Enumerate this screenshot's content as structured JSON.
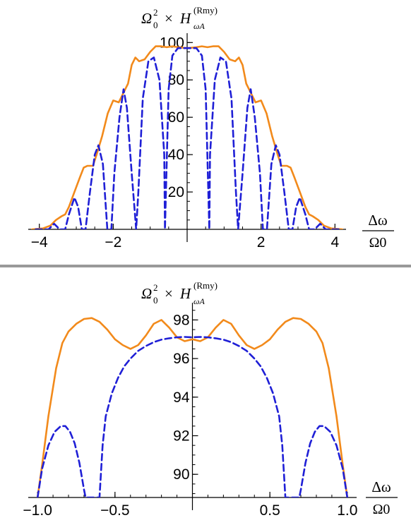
{
  "divider_color": "#999999",
  "chart_data": [
    {
      "type": "line",
      "title": "",
      "ylabel_parts": {
        "base": "Ω",
        "sub0": "0",
        "sup0": "2",
        "times": "×",
        "H": "H",
        "subH": "ωA",
        "supH": "(Rmy)"
      },
      "xlabel_parts": {
        "num": "Δω",
        "den": "Ω0"
      },
      "xlim": [
        -4.3,
        4.3
      ],
      "ylim": [
        0,
        102
      ],
      "x_ticks": [
        -4,
        -2,
        2,
        4
      ],
      "x_tick_labels": [
        "−4",
        "−2",
        "2",
        "4"
      ],
      "y_ticks": [
        20,
        40,
        60,
        80,
        100
      ],
      "y_tick_labels": [
        "20",
        "40",
        "60",
        "80",
        "100"
      ],
      "legend": "none",
      "grid": false,
      "series": [
        {
          "color": "#f28a1b",
          "style": "solid",
          "x": [
            -4.2,
            -3.9,
            -3.7,
            -3.55,
            -3.4,
            -3.3,
            -3.2,
            -3.05,
            -2.9,
            -2.8,
            -2.7,
            -2.55,
            -2.45,
            -2.3,
            -2.15,
            -2.0,
            -1.85,
            -1.75,
            -1.6,
            -1.5,
            -1.4,
            -1.3,
            -1.15,
            -1.0,
            -0.85,
            -0.7,
            -0.55,
            -0.4,
            -0.25,
            0,
            0.25,
            0.4,
            0.55,
            0.7,
            0.85,
            1.0,
            1.15,
            1.3,
            1.4,
            1.5,
            1.6,
            1.75,
            1.85,
            2.0,
            2.15,
            2.3,
            2.45,
            2.55,
            2.7,
            2.8,
            2.9,
            3.05,
            3.2,
            3.3,
            3.4,
            3.55,
            3.7,
            3.9,
            4.2
          ],
          "y": [
            0,
            0.5,
            2,
            5,
            7,
            8,
            12,
            20,
            28,
            33,
            34,
            34,
            40,
            50,
            62,
            69,
            68,
            72,
            78,
            88,
            92,
            90,
            91,
            95,
            98,
            98,
            97.5,
            98,
            97.5,
            97,
            97.5,
            98,
            97.5,
            98,
            98,
            95,
            91,
            90,
            92,
            88,
            78,
            72,
            68,
            69,
            62,
            50,
            40,
            34,
            34,
            33,
            28,
            20,
            12,
            8,
            7,
            5,
            2,
            0.5,
            0
          ]
        },
        {
          "color": "#1f1fd6",
          "style": "dashed",
          "x": [
            -4.1,
            -3.75,
            -3.6,
            -3.45,
            -3.3,
            -3.2,
            -3.05,
            -2.95,
            -2.85,
            -2.75,
            -2.63,
            -2.5,
            -2.4,
            -2.28,
            -2.16,
            -2.05,
            -1.97,
            -1.83,
            -1.72,
            -1.63,
            -1.5,
            -1.38,
            -1.32,
            -1.2,
            -1.05,
            -0.9,
            -0.75,
            -0.62,
            -0.6,
            -0.5,
            -0.4,
            -0.25,
            0,
            0.25,
            0.4,
            0.5,
            0.6,
            0.62,
            0.75,
            0.9,
            1.05,
            1.2,
            1.32,
            1.38,
            1.5,
            1.63,
            1.72,
            1.83,
            1.97,
            2.05,
            2.16,
            2.28,
            2.4,
            2.5,
            2.63,
            2.75,
            2.85,
            2.95,
            3.05,
            3.2,
            3.3,
            3.45,
            3.6,
            3.75,
            4.1
          ],
          "y": [
            0,
            0,
            3,
            0,
            0,
            8,
            17,
            12,
            0,
            0,
            20,
            40,
            45,
            35,
            0,
            0,
            30,
            60,
            75,
            65,
            30,
            0,
            20,
            70,
            90,
            92,
            80,
            40,
            0,
            75,
            93,
            97,
            97,
            97,
            93,
            75,
            0,
            40,
            80,
            92,
            90,
            70,
            20,
            0,
            30,
            65,
            75,
            60,
            30,
            0,
            0,
            35,
            45,
            40,
            20,
            0,
            0,
            12,
            17,
            8,
            0,
            0,
            3,
            0,
            0
          ]
        }
      ]
    },
    {
      "type": "line",
      "title": "",
      "ylabel_parts": {
        "base": "Ω",
        "sub0": "0",
        "sup0": "2",
        "times": "×",
        "H": "H",
        "subH": "ωA",
        "supH": "(Rmy)"
      },
      "xlabel_parts": {
        "num": "Δω",
        "den": "Ω0"
      },
      "xlim": [
        -1.06,
        1.06
      ],
      "ylim": [
        88.8,
        98.6
      ],
      "x_ticks": [
        -1.0,
        -0.5,
        0.5,
        1.0
      ],
      "x_tick_labels": [
        "−1.0",
        "−0.5",
        "0.5",
        "1.0"
      ],
      "y_ticks": [
        90,
        92,
        94,
        96,
        98
      ],
      "y_tick_labels": [
        "90",
        "92",
        "94",
        "96",
        "98"
      ],
      "legend": "none",
      "grid": false,
      "series": [
        {
          "color": "#f28a1b",
          "style": "solid",
          "x": [
            -1.0,
            -0.97,
            -0.93,
            -0.88,
            -0.84,
            -0.8,
            -0.75,
            -0.7,
            -0.65,
            -0.6,
            -0.55,
            -0.5,
            -0.45,
            -0.4,
            -0.35,
            -0.3,
            -0.25,
            -0.2,
            -0.15,
            -0.1,
            -0.05,
            0,
            0.05,
            0.1,
            0.15,
            0.2,
            0.25,
            0.3,
            0.35,
            0.4,
            0.45,
            0.5,
            0.55,
            0.6,
            0.65,
            0.7,
            0.75,
            0.8,
            0.84,
            0.88,
            0.93,
            0.97,
            1.0
          ],
          "y": [
            88.8,
            90.5,
            93,
            95.5,
            96.8,
            97.4,
            97.8,
            98.05,
            98.1,
            97.9,
            97.5,
            97.0,
            96.7,
            96.5,
            96.7,
            97.2,
            97.8,
            98.0,
            97.6,
            97.1,
            96.9,
            97.0,
            96.9,
            97.1,
            97.6,
            98.0,
            97.8,
            97.2,
            96.7,
            96.5,
            96.7,
            97.0,
            97.5,
            97.9,
            98.1,
            98.05,
            97.8,
            97.4,
            96.8,
            95.5,
            93,
            90.5,
            88.8
          ]
        },
        {
          "color": "#1f1fd6",
          "style": "dashed",
          "x": [
            -1.0,
            -0.97,
            -0.93,
            -0.89,
            -0.85,
            -0.82,
            -0.79,
            -0.76,
            -0.73,
            -0.7,
            -0.69,
            -0.6,
            -0.58,
            -0.56,
            -0.52,
            -0.48,
            -0.44,
            -0.4,
            -0.35,
            -0.3,
            -0.25,
            -0.2,
            -0.15,
            -0.1,
            -0.05,
            0,
            0.05,
            0.1,
            0.15,
            0.2,
            0.25,
            0.3,
            0.35,
            0.4,
            0.44,
            0.48,
            0.52,
            0.56,
            0.58,
            0.6,
            0.69,
            0.7,
            0.73,
            0.76,
            0.79,
            0.82,
            0.85,
            0.89,
            0.93,
            0.97,
            1.0
          ],
          "y": [
            88.8,
            90.3,
            91.5,
            92.2,
            92.5,
            92.5,
            92.2,
            91.6,
            90.6,
            89.2,
            88.8,
            88.8,
            91.5,
            93.0,
            94.2,
            95.0,
            95.6,
            96.0,
            96.4,
            96.65,
            96.85,
            96.98,
            97.05,
            97.1,
            97.12,
            97.1,
            97.12,
            97.1,
            97.05,
            96.98,
            96.85,
            96.65,
            96.4,
            96.0,
            95.6,
            95.0,
            94.2,
            93.0,
            91.5,
            88.8,
            88.8,
            89.2,
            90.6,
            91.6,
            92.2,
            92.5,
            92.5,
            92.2,
            91.5,
            90.3,
            88.8
          ]
        }
      ]
    }
  ]
}
